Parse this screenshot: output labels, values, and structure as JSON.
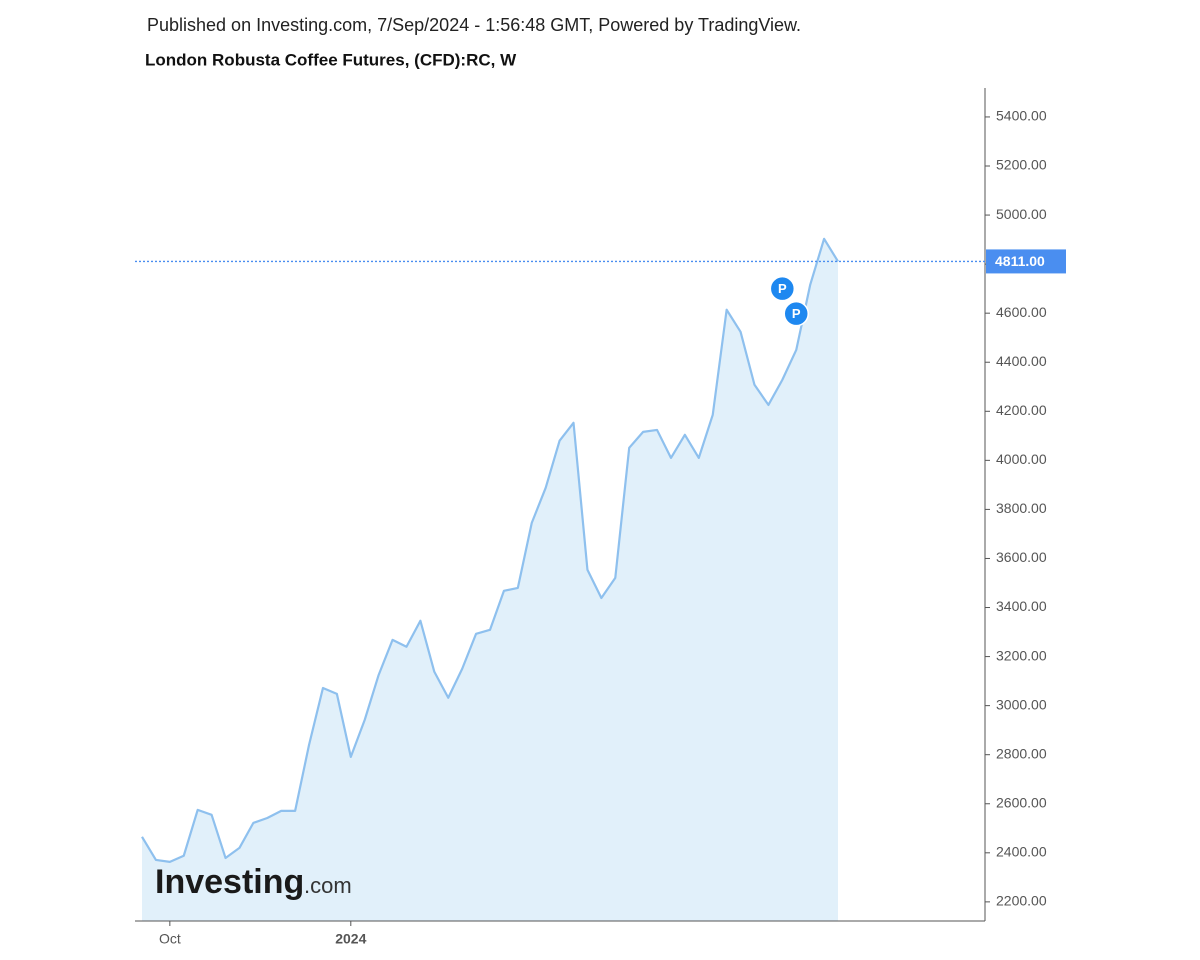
{
  "header": {
    "published": "Published on Investing.com, 7/Sep/2024 - 1:56:48 GMT, Powered by TradingView.",
    "title": "London Robusta Coffee Futures, (CFD):RC, W"
  },
  "chart_data": {
    "type": "area",
    "categories": [
      null,
      null,
      "Oct",
      null,
      null,
      null,
      null,
      null,
      null,
      null,
      null,
      null,
      null,
      null,
      null,
      "2024",
      null,
      null,
      null,
      null,
      null,
      null,
      null,
      null,
      null,
      null,
      null,
      null,
      null,
      null,
      null,
      null,
      null,
      null,
      null,
      null,
      null,
      null,
      null,
      null,
      null,
      null,
      null,
      null,
      null,
      null,
      null,
      null,
      null,
      null,
      null
    ],
    "series": [
      {
        "name": "RC",
        "color": "#8ec0ee",
        "fill": "#e1f0fa",
        "values": [
          2465,
          2371,
          2363,
          2388,
          2575,
          2555,
          2379,
          2420,
          2522,
          2542,
          2571,
          2571,
          2840,
          3072,
          3048,
          2791,
          2942,
          3125,
          3268,
          3240,
          3346,
          3138,
          3032,
          3150,
          3293,
          3309,
          3468,
          3480,
          3745,
          3888,
          4080,
          4153,
          3554,
          3439,
          3521,
          4051,
          4116,
          4124,
          4010,
          4104,
          4010,
          4185,
          4614,
          4524,
          4308,
          4226,
          4328,
          4450,
          4715,
          4903,
          4811
        ]
      }
    ],
    "ylim": [
      2122,
      5518
    ],
    "yticks": [
      {
        "value": 2200,
        "label": "2200.00"
      },
      {
        "value": 2400,
        "label": "2400.00"
      },
      {
        "value": 2600,
        "label": "2600.00"
      },
      {
        "value": 2800,
        "label": "2800.00"
      },
      {
        "value": 3000,
        "label": "3000.00"
      },
      {
        "value": 3200,
        "label": "3200.00"
      },
      {
        "value": 3400,
        "label": "3400.00"
      },
      {
        "value": 3600,
        "label": "3600.00"
      },
      {
        "value": 3800,
        "label": "3800.00"
      },
      {
        "value": 4000,
        "label": "4000.00"
      },
      {
        "value": 4200,
        "label": "4200.00"
      },
      {
        "value": 4400,
        "label": "4400.00"
      },
      {
        "value": 4600,
        "label": "4600.00"
      },
      {
        "value": 4800,
        "label": "4800.00"
      },
      {
        "value": 5000,
        "label": "5000.00"
      },
      {
        "value": 5200,
        "label": "5200.00"
      },
      {
        "value": 5400,
        "label": "5400.00"
      }
    ],
    "price_line": {
      "value": 4811,
      "label": "4811.00",
      "color": "#4a8ef0"
    },
    "annotations": [
      {
        "category_index": 46,
        "value": 4700,
        "text": "P"
      },
      {
        "category_index": 47,
        "value": 4598,
        "text": "P"
      }
    ],
    "watermark": {
      "main": "Investing",
      "suffix": ".com"
    }
  }
}
